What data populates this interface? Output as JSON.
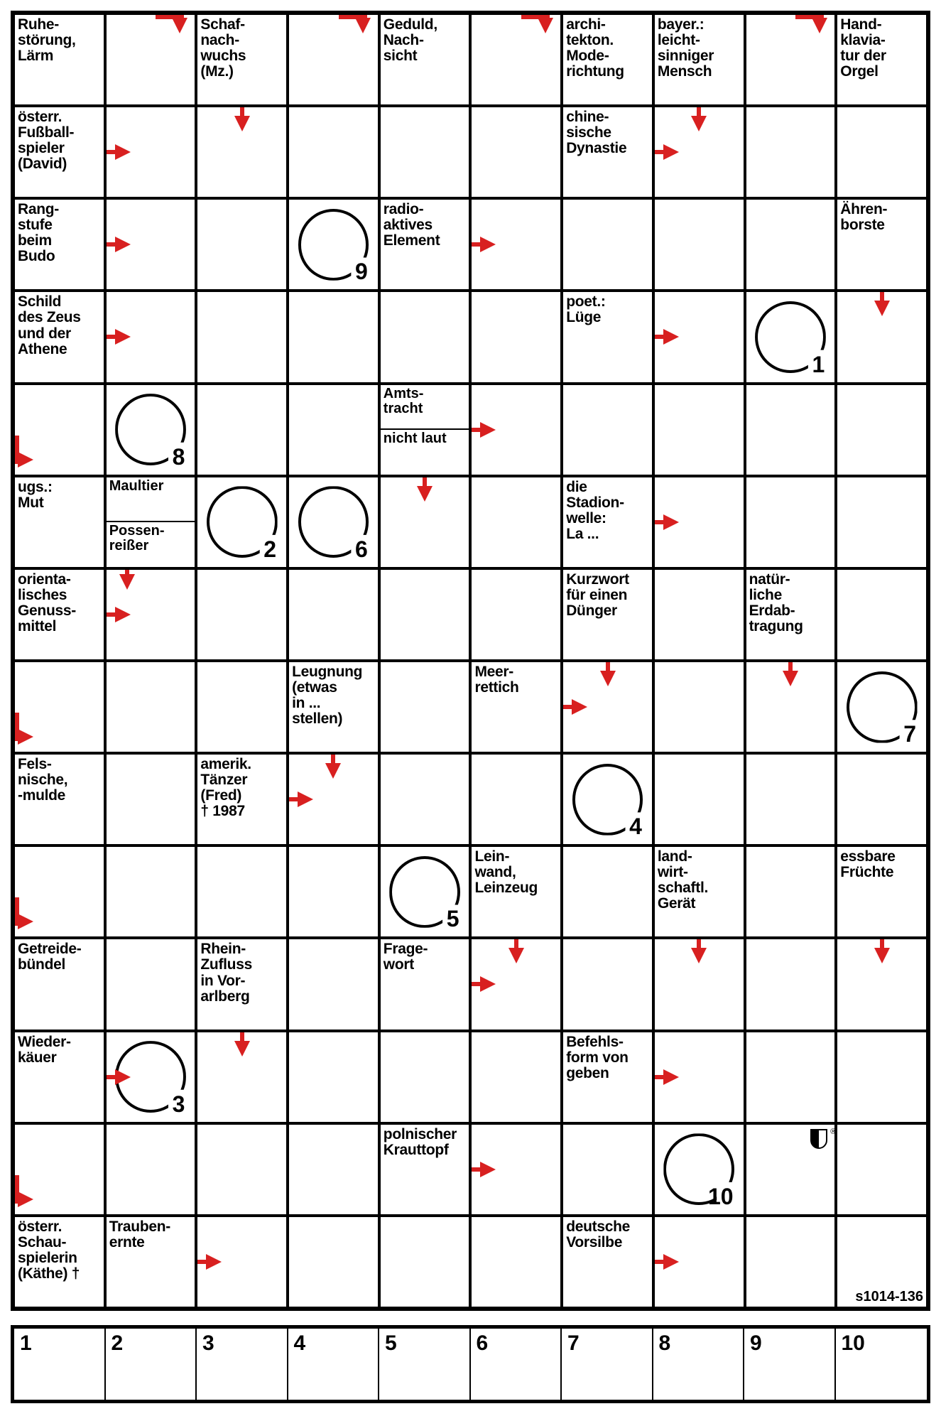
{
  "grid": {
    "rows": 15,
    "cols": 10
  },
  "arrow_color": "#d82020",
  "cells": [
    {
      "r": 0,
      "c": 0,
      "clue": "Ruhe-\nstörung,\nLärm"
    },
    {
      "r": 0,
      "c": 1,
      "arrow": "rd"
    },
    {
      "r": 0,
      "c": 2,
      "clue": "Schaf-\nnach-\nwuchs\n(Mz.)"
    },
    {
      "r": 0,
      "c": 3,
      "arrow": "rd"
    },
    {
      "r": 0,
      "c": 4,
      "clue": "Geduld,\nNach-\nsicht"
    },
    {
      "r": 0,
      "c": 5,
      "arrow": "rd"
    },
    {
      "r": 0,
      "c": 6,
      "clue": "archi-\ntekton.\nMode-\nrichtung"
    },
    {
      "r": 0,
      "c": 7,
      "clue": "bayer.:\nleicht-\nsinniger\nMensch"
    },
    {
      "r": 0,
      "c": 8,
      "arrow": "rd"
    },
    {
      "r": 0,
      "c": 9,
      "clue": "Hand-\nklavia-\ntur der\nOrgel"
    },
    {
      "r": 1,
      "c": 0,
      "clue": "österr.\nFußball-\nspieler\n(David)"
    },
    {
      "r": 1,
      "c": 1,
      "arrow": "r"
    },
    {
      "r": 1,
      "c": 2,
      "arrow": "d"
    },
    {
      "r": 1,
      "c": 3
    },
    {
      "r": 1,
      "c": 4
    },
    {
      "r": 1,
      "c": 5
    },
    {
      "r": 1,
      "c": 6,
      "clue": "chine-\nsische\nDynastie"
    },
    {
      "r": 1,
      "c": 7,
      "arrow": "r",
      "arrow2": "d"
    },
    {
      "r": 1,
      "c": 8
    },
    {
      "r": 1,
      "c": 9
    },
    {
      "r": 2,
      "c": 0,
      "clue": "Rang-\nstufe\nbeim\nBudo"
    },
    {
      "r": 2,
      "c": 1,
      "arrow": "r"
    },
    {
      "r": 2,
      "c": 2
    },
    {
      "r": 2,
      "c": 3,
      "circle": 9
    },
    {
      "r": 2,
      "c": 4,
      "clue": "radio-\naktives\nElement"
    },
    {
      "r": 2,
      "c": 5,
      "arrow": "r"
    },
    {
      "r": 2,
      "c": 6
    },
    {
      "r": 2,
      "c": 7
    },
    {
      "r": 2,
      "c": 8
    },
    {
      "r": 2,
      "c": 9,
      "clue": "Ähren-\nborste"
    },
    {
      "r": 3,
      "c": 0,
      "clue": "Schild\ndes Zeus\nund der\nAthene"
    },
    {
      "r": 3,
      "c": 1,
      "arrow": "r"
    },
    {
      "r": 3,
      "c": 2
    },
    {
      "r": 3,
      "c": 3
    },
    {
      "r": 3,
      "c": 4
    },
    {
      "r": 3,
      "c": 5
    },
    {
      "r": 3,
      "c": 6,
      "clue": "poet.:\nLüge"
    },
    {
      "r": 3,
      "c": 7,
      "arrow": "r"
    },
    {
      "r": 3,
      "c": 8,
      "circle": 1
    },
    {
      "r": 3,
      "c": 9,
      "arrow": "d"
    },
    {
      "r": 4,
      "c": 0,
      "arrow": "dr"
    },
    {
      "r": 4,
      "c": 1,
      "circle": 8
    },
    {
      "r": 4,
      "c": 2
    },
    {
      "r": 4,
      "c": 3
    },
    {
      "r": 4,
      "c": 4,
      "split": [
        "Amts-\ntracht",
        "nicht\nlaut"
      ]
    },
    {
      "r": 4,
      "c": 5,
      "arrow": "r"
    },
    {
      "r": 4,
      "c": 6
    },
    {
      "r": 4,
      "c": 7
    },
    {
      "r": 4,
      "c": 8
    },
    {
      "r": 4,
      "c": 9
    },
    {
      "r": 5,
      "c": 0,
      "clue": "ugs.:\nMut"
    },
    {
      "r": 5,
      "c": 1,
      "split": [
        "Maultier",
        "Possen-\nreißer"
      ]
    },
    {
      "r": 5,
      "c": 2,
      "circle": 2
    },
    {
      "r": 5,
      "c": 3,
      "circle": 6
    },
    {
      "r": 5,
      "c": 4,
      "arrow": "d"
    },
    {
      "r": 5,
      "c": 5
    },
    {
      "r": 5,
      "c": 6,
      "clue": "die\nStadion-\nwelle:\nLa ..."
    },
    {
      "r": 5,
      "c": 7,
      "arrow": "r"
    },
    {
      "r": 5,
      "c": 8
    },
    {
      "r": 5,
      "c": 9
    },
    {
      "r": 6,
      "c": 0,
      "clue": "orienta-\nlisches\nGenuss-\nmittel"
    },
    {
      "r": 6,
      "c": 1,
      "arrow": "r",
      "arrow2": "d-tl"
    },
    {
      "r": 6,
      "c": 2
    },
    {
      "r": 6,
      "c": 3
    },
    {
      "r": 6,
      "c": 4
    },
    {
      "r": 6,
      "c": 5
    },
    {
      "r": 6,
      "c": 6,
      "clue": "Kurzwort\nfür einen\nDünger"
    },
    {
      "r": 6,
      "c": 7
    },
    {
      "r": 6,
      "c": 8,
      "clue": "natür-\nliche\nErdab-\ntragung"
    },
    {
      "r": 6,
      "c": 9
    },
    {
      "r": 7,
      "c": 0,
      "arrow": "dr"
    },
    {
      "r": 7,
      "c": 1
    },
    {
      "r": 7,
      "c": 2
    },
    {
      "r": 7,
      "c": 3,
      "clue": "Leugnung\n(etwas\nin ...\nstellen)"
    },
    {
      "r": 7,
      "c": 4
    },
    {
      "r": 7,
      "c": 5,
      "clue": "Meer-\nrettich"
    },
    {
      "r": 7,
      "c": 6,
      "arrow": "r",
      "arrow2": "d"
    },
    {
      "r": 7,
      "c": 7
    },
    {
      "r": 7,
      "c": 8,
      "arrow": "d"
    },
    {
      "r": 7,
      "c": 9,
      "circle": 7
    },
    {
      "r": 8,
      "c": 0,
      "clue": "Fels-\nnische,\n-mulde"
    },
    {
      "r": 8,
      "c": 1
    },
    {
      "r": 8,
      "c": 2,
      "clue": "amerik.\nTänzer\n(Fred)\n† 1987"
    },
    {
      "r": 8,
      "c": 3,
      "arrow": "r",
      "arrow2": "d"
    },
    {
      "r": 8,
      "c": 4
    },
    {
      "r": 8,
      "c": 5
    },
    {
      "r": 8,
      "c": 6,
      "circle": 4
    },
    {
      "r": 8,
      "c": 7
    },
    {
      "r": 8,
      "c": 8
    },
    {
      "r": 8,
      "c": 9
    },
    {
      "r": 9,
      "c": 0,
      "arrow": "dr"
    },
    {
      "r": 9,
      "c": 1
    },
    {
      "r": 9,
      "c": 2
    },
    {
      "r": 9,
      "c": 3
    },
    {
      "r": 9,
      "c": 4,
      "circle": 5
    },
    {
      "r": 9,
      "c": 5,
      "clue": "Lein-\nwand,\nLeinzeug"
    },
    {
      "r": 9,
      "c": 6
    },
    {
      "r": 9,
      "c": 7,
      "clue": "land-\nwirt-\nschaftl.\nGerät"
    },
    {
      "r": 9,
      "c": 8
    },
    {
      "r": 9,
      "c": 9,
      "clue": "essbare\nFrüchte"
    },
    {
      "r": 10,
      "c": 0,
      "clue": "Getreide-\nbündel"
    },
    {
      "r": 10,
      "c": 1
    },
    {
      "r": 10,
      "c": 2,
      "clue": "Rhein-\nZufluss\nin Vor-\narlberg"
    },
    {
      "r": 10,
      "c": 3
    },
    {
      "r": 10,
      "c": 4,
      "clue": "Frage-\nwort"
    },
    {
      "r": 10,
      "c": 5,
      "arrow": "r",
      "arrow2": "d"
    },
    {
      "r": 10,
      "c": 6
    },
    {
      "r": 10,
      "c": 7,
      "arrow": "d"
    },
    {
      "r": 10,
      "c": 8
    },
    {
      "r": 10,
      "c": 9,
      "arrow": "d"
    },
    {
      "r": 11,
      "c": 0,
      "clue": "Wieder-\nkäuer"
    },
    {
      "r": 11,
      "c": 1,
      "circle": 3,
      "arrow": "r"
    },
    {
      "r": 11,
      "c": 2,
      "arrow": "d"
    },
    {
      "r": 11,
      "c": 3
    },
    {
      "r": 11,
      "c": 4
    },
    {
      "r": 11,
      "c": 5
    },
    {
      "r": 11,
      "c": 6,
      "clue": "Befehls-\nform von\ngeben"
    },
    {
      "r": 11,
      "c": 7,
      "arrow": "r"
    },
    {
      "r": 11,
      "c": 8
    },
    {
      "r": 11,
      "c": 9
    },
    {
      "r": 12,
      "c": 0,
      "arrow": "dr"
    },
    {
      "r": 12,
      "c": 1
    },
    {
      "r": 12,
      "c": 2
    },
    {
      "r": 12,
      "c": 3
    },
    {
      "r": 12,
      "c": 4,
      "clue": "polnischer\nKrauttopf"
    },
    {
      "r": 12,
      "c": 5,
      "arrow": "r"
    },
    {
      "r": 12,
      "c": 6
    },
    {
      "r": 12,
      "c": 7,
      "circle": 10
    },
    {
      "r": 12,
      "c": 8,
      "logo": true
    },
    {
      "r": 12,
      "c": 9
    },
    {
      "r": 13,
      "c": 0,
      "clue": "österr.\nSchau-\nspielerin\n(Käthe) †"
    },
    {
      "r": 13,
      "c": 1,
      "clue": "Trauben-\nernte"
    },
    {
      "r": 13,
      "c": 2,
      "arrow": "r"
    },
    {
      "r": 13,
      "c": 3
    },
    {
      "r": 13,
      "c": 4
    },
    {
      "r": 13,
      "c": 5
    },
    {
      "r": 13,
      "c": 6,
      "clue": "deutsche\nVorsilbe"
    },
    {
      "r": 13,
      "c": 7,
      "arrow": "r"
    },
    {
      "r": 13,
      "c": 8
    },
    {
      "r": 13,
      "c": 9,
      "puzid": "s1014-136"
    },
    {
      "r": 14,
      "c": 0,
      "hidden": true
    }
  ],
  "solution_cells": 10,
  "puzzle_id": "s1014-136"
}
